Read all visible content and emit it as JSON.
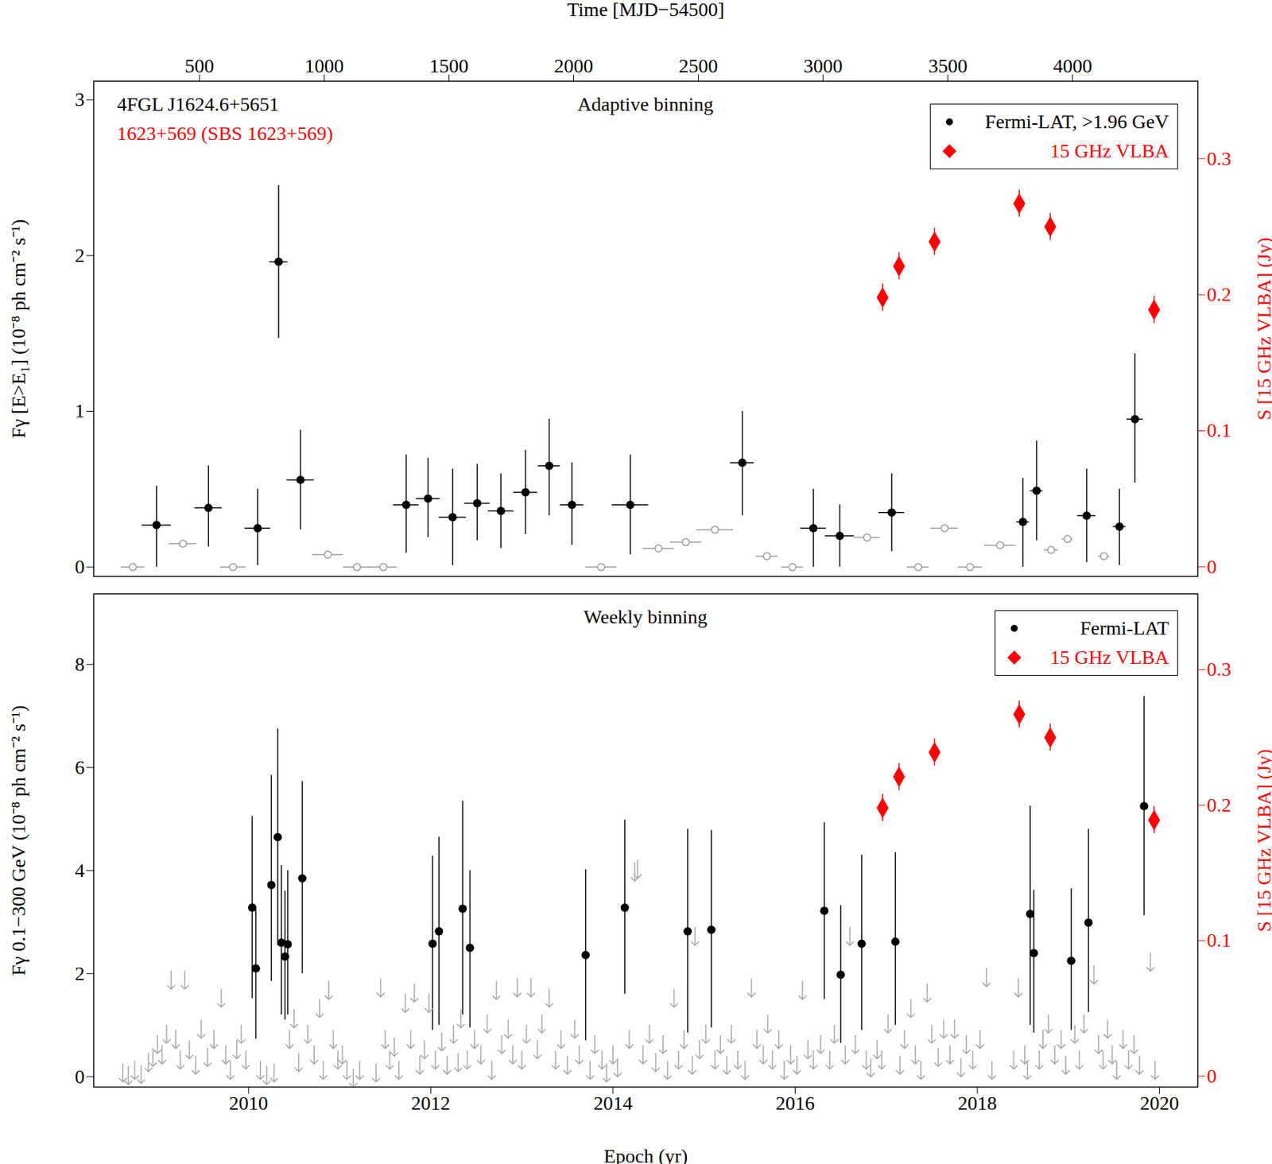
{
  "chart_data": [
    {
      "type": "scatter",
      "title": "Adaptive binning",
      "annotations": [
        {
          "text": "4FGL J1624.6+5651",
          "color": "#000000"
        },
        {
          "text": "1623+569 (SBS 1623+569)",
          "color": "#ff0000"
        }
      ],
      "ylabel": "Fγ [E>E₁] (10⁻⁸ ph cm⁻² s⁻¹)",
      "x2label": "Time [MJD−54500]",
      "y2label": "S [15 GHz VLBA] (Jy)",
      "xlim": [
        2008.3,
        2020.42
      ],
      "x2lim": [
        76,
        4502
      ],
      "x2ticks": [
        500,
        1000,
        1500,
        2000,
        2500,
        3000,
        3500,
        4000
      ],
      "ylim": [
        -0.06,
        3.12
      ],
      "yticks": [
        0,
        1,
        2,
        3
      ],
      "y2lim": [
        -0.007,
        0.357
      ],
      "y2ticks": [
        0,
        0.1,
        0.2,
        0.3
      ],
      "grid": false,
      "legend": "upper right",
      "series": [
        {
          "name": "Fermi-LAT, >1.96 GeV",
          "color": "#000000",
          "marker": "circle",
          "x": [
            2008.99,
            2009.56,
            2010.1,
            2010.33,
            2010.57,
            2011.73,
            2011.97,
            2012.24,
            2012.51,
            2012.77,
            2013.04,
            2013.3,
            2013.55,
            2014.19,
            2015.42,
            2016.2,
            2016.49,
            2017.06,
            2018.5,
            2018.65,
            2019.2,
            2019.56,
            2019.73
          ],
          "values": [
            0.27,
            0.38,
            0.25,
            1.96,
            0.56,
            0.4,
            0.44,
            0.32,
            0.41,
            0.36,
            0.48,
            0.65,
            0.4,
            0.4,
            0.67,
            0.25,
            0.2,
            0.35,
            0.29,
            0.49,
            0.33,
            0.26,
            0.95
          ],
          "y_lower": [
            0,
            0.13,
            0.01,
            1.47,
            0.24,
            0.09,
            0.19,
            0.01,
            0.17,
            0.12,
            0.21,
            0.33,
            0.14,
            0.08,
            0.33,
            0,
            0,
            0.1,
            0,
            0.17,
            0.03,
            0.01,
            0.54
          ],
          "y_upper": [
            0.52,
            0.65,
            0.5,
            2.45,
            0.88,
            0.72,
            0.7,
            0.63,
            0.66,
            0.6,
            0.75,
            0.95,
            0.67,
            0.72,
            1.0,
            0.5,
            0.4,
            0.6,
            0.57,
            0.81,
            0.63,
            0.5,
            1.37
          ],
          "x_err": [
            0.16,
            0.15,
            0.14,
            0.1,
            0.15,
            0.14,
            0.13,
            0.15,
            0.14,
            0.14,
            0.13,
            0.12,
            0.13,
            0.2,
            0.13,
            0.14,
            0.16,
            0.14,
            0.07,
            0.07,
            0.1,
            0.07,
            0.09
          ]
        },
        {
          "color": "#999999",
          "marker": "open_circle",
          "x": [
            2008.73,
            2009.28,
            2009.83,
            2010.87,
            2011.19,
            2011.48,
            2013.87,
            2014.5,
            2014.8,
            2015.12,
            2015.69,
            2015.97,
            2016.79,
            2017.35,
            2017.64,
            2017.92,
            2018.25,
            2018.81,
            2018.99,
            2019.39
          ],
          "values": [
            0,
            0.15,
            0,
            0.08,
            0,
            0,
            0,
            0.12,
            0.16,
            0.24,
            0.07,
            0,
            0.19,
            0,
            0.25,
            0,
            0.14,
            0.11,
            0.18,
            0.07
          ],
          "x_err": [
            0.13,
            0.15,
            0.14,
            0.17,
            0.15,
            0.15,
            0.17,
            0.17,
            0.17,
            0.2,
            0.12,
            0.12,
            0.14,
            0.12,
            0.15,
            0.13,
            0.17,
            0.08,
            0.06,
            0.06
          ]
        },
        {
          "name": "15 GHz VLBA",
          "color": "#ff0000",
          "marker": "diamond",
          "axis": "y2",
          "x": [
            2016.96,
            2017.14,
            2017.53,
            2018.46,
            2018.8,
            2019.94
          ],
          "values": [
            0.198,
            0.221,
            0.239,
            0.267,
            0.25,
            0.189
          ],
          "y_lower": [
            0.188,
            0.211,
            0.229,
            0.257,
            0.24,
            0.179
          ],
          "y_upper": [
            0.208,
            0.231,
            0.249,
            0.277,
            0.26,
            0.199
          ]
        }
      ]
    },
    {
      "type": "scatter",
      "title": "Weekly binning",
      "xlabel": "Epoch (yr)",
      "ylabel": "Fγ 0.1−300 GeV (10⁻⁸ ph cm⁻² s⁻¹)",
      "y2label": "S [15 GHz VLBA] (Jy)",
      "xlim": [
        2008.3,
        2020.42
      ],
      "xticks": [
        2010,
        2012,
        2014,
        2016,
        2018,
        2020
      ],
      "ylim": [
        -0.2,
        9.37
      ],
      "yticks": [
        0,
        2,
        4,
        6,
        8
      ],
      "y2lim": [
        -0.008,
        0.356
      ],
      "y2ticks": [
        0,
        0.1,
        0.2,
        0.3
      ],
      "grid": false,
      "legend": "upper right",
      "series": [
        {
          "name": "Fermi-LAT",
          "color": "#000000",
          "marker": "circle",
          "x": [
            2010.04,
            2010.08,
            2010.25,
            2010.32,
            2010.36,
            2010.4,
            2010.43,
            2010.59,
            2012.02,
            2012.09,
            2012.35,
            2012.43,
            2013.7,
            2014.13,
            2014.82,
            2015.08,
            2016.32,
            2016.5,
            2016.73,
            2017.1,
            2018.58,
            2018.62,
            2019.03,
            2019.22,
            2019.83
          ],
          "values": [
            3.28,
            2.1,
            3.72,
            4.65,
            2.6,
            2.33,
            2.57,
            3.85,
            2.58,
            2.82,
            3.26,
            2.5,
            2.36,
            3.28,
            2.82,
            2.85,
            3.22,
            1.98,
            2.58,
            2.62,
            3.16,
            2.4,
            2.25,
            2.99,
            5.25
          ],
          "y_lower": [
            1.52,
            0.73,
            1.85,
            2.55,
            1.2,
            1.1,
            1.2,
            2.0,
            0.9,
            1.0,
            1.2,
            0.95,
            0.7,
            1.6,
            0.85,
            0.95,
            1.5,
            0.65,
            0.9,
            1.0,
            1.0,
            0.85,
            0.9,
            1.25,
            3.13
          ],
          "y_upper": [
            5.05,
            3.3,
            5.85,
            6.75,
            4.1,
            3.6,
            4.0,
            5.73,
            4.28,
            4.65,
            5.35,
            4.0,
            4.02,
            4.98,
            4.8,
            4.78,
            4.93,
            3.32,
            4.3,
            4.35,
            5.25,
            3.62,
            3.65,
            4.8,
            7.38
          ]
        },
        {
          "color": "#aaaaaa",
          "marker": "arrow",
          "x": [
            2008.62,
            2008.68,
            2008.75,
            2008.82,
            2008.9,
            2008.95,
            2009.0,
            2009.05,
            2009.1,
            2009.15,
            2009.2,
            2009.25,
            2009.3,
            2009.35,
            2009.42,
            2009.48,
            2009.55,
            2009.62,
            2009.7,
            2009.75,
            2009.8,
            2009.87,
            2009.92,
            2009.97,
            2010.13,
            2010.2,
            2010.28,
            2010.45,
            2010.5,
            2010.55,
            2010.65,
            2010.72,
            2010.78,
            2010.82,
            2010.88,
            2010.93,
            2010.98,
            2011.03,
            2011.08,
            2011.15,
            2011.22,
            2011.4,
            2011.45,
            2011.5,
            2011.55,
            2011.6,
            2011.65,
            2011.72,
            2011.78,
            2011.82,
            2011.88,
            2011.93,
            2011.98,
            2012.05,
            2012.12,
            2012.18,
            2012.25,
            2012.3,
            2012.33,
            2012.4,
            2012.48,
            2012.55,
            2012.62,
            2012.67,
            2012.72,
            2012.78,
            2012.85,
            2012.9,
            2012.95,
            2013.0,
            2013.05,
            2013.1,
            2013.17,
            2013.22,
            2013.3,
            2013.37,
            2013.43,
            2013.5,
            2013.58,
            2013.63,
            2013.75,
            2013.8,
            2013.88,
            2013.93,
            2014.0,
            2014.05,
            2014.18,
            2014.24,
            2014.27,
            2014.33,
            2014.4,
            2014.47,
            2014.55,
            2014.6,
            2014.67,
            2014.72,
            2014.78,
            2014.87,
            2014.9,
            2014.95,
            2015.02,
            2015.12,
            2015.18,
            2015.25,
            2015.3,
            2015.37,
            2015.45,
            2015.52,
            2015.58,
            2015.65,
            2015.7,
            2015.75,
            2015.82,
            2015.88,
            2015.95,
            2016.02,
            2016.08,
            2016.14,
            2016.2,
            2016.28,
            2016.38,
            2016.43,
            2016.55,
            2016.6,
            2016.66,
            2016.78,
            2016.83,
            2016.9,
            2016.95,
            2017.02,
            2017.15,
            2017.2,
            2017.27,
            2017.32,
            2017.38,
            2017.45,
            2017.5,
            2017.57,
            2017.63,
            2017.7,
            2017.75,
            2017.82,
            2017.88,
            2017.95,
            2018.03,
            2018.1,
            2018.16,
            2018.4,
            2018.45,
            2018.52,
            2018.55,
            2018.68,
            2018.72,
            2018.78,
            2018.85,
            2018.92,
            2018.97,
            2019.07,
            2019.12,
            2019.17,
            2019.28,
            2019.33,
            2019.38,
            2019.43,
            2019.48,
            2019.53,
            2019.6,
            2019.66,
            2019.72,
            2019.78,
            2019.9,
            2019.95
          ],
          "values": [
            0.25,
            0.2,
            0.3,
            0.22,
            0.45,
            0.55,
            0.8,
            0.6,
            1.0,
            2.05,
            0.9,
            0.5,
            2.05,
            0.7,
            0.4,
            1.1,
            0.55,
            0.9,
            1.7,
            0.6,
            0.3,
            0.7,
            1.0,
            0.5,
            0.3,
            0.2,
            0.25,
            0.9,
            1.3,
            0.45,
            1.0,
            0.6,
            1.5,
            0.3,
            1.85,
            0.9,
            0.5,
            0.6,
            0.3,
            0.15,
            0.3,
            0.25,
            1.9,
            0.9,
            0.5,
            0.75,
            0.3,
            1.6,
            0.9,
            1.8,
            0.4,
            0.7,
            1.6,
            0.5,
            0.85,
            0.4,
            1.0,
            0.45,
            1.3,
            0.5,
            0.9,
            0.6,
            1.2,
            0.3,
            1.85,
            0.8,
            1.1,
            0.6,
            1.9,
            0.5,
            1.0,
            1.9,
            0.7,
            1.2,
            1.7,
            0.5,
            0.9,
            0.4,
            1.1,
            0.6,
            0.3,
            0.8,
            0.5,
            0.25,
            0.6,
            0.35,
            0.9,
            4.15,
            4.2,
            0.6,
            1.0,
            0.45,
            0.8,
            0.3,
            1.7,
            0.5,
            0.9,
            0.4,
            2.9,
            0.7,
            1.0,
            0.5,
            0.8,
            0.4,
            1.0,
            0.5,
            0.3,
            1.9,
            0.9,
            0.6,
            1.2,
            0.5,
            0.9,
            0.3,
            0.6,
            0.4,
            1.85,
            0.7,
            0.5,
            0.8,
            0.5,
            1.0,
            0.6,
            2.9,
            0.8,
            0.5,
            0.35,
            0.7,
            0.5,
            1.2,
            0.4,
            0.9,
            1.5,
            0.6,
            0.3,
            1.8,
            1.0,
            0.55,
            1.1,
            0.6,
            1.1,
            0.35,
            0.8,
            0.5,
            0.9,
            2.1,
            0.3,
            0.5,
            1.9,
            0.6,
            0.3,
            0.5,
            0.9,
            1.2,
            0.6,
            0.9,
            0.4,
            1.0,
            0.5,
            1.2,
            2.15,
            0.8,
            0.5,
            1.1,
            0.6,
            0.3,
            0.9,
            0.5,
            0.8,
            0.4,
            2.4,
            0.3
          ]
        },
        {
          "name": "15 GHz VLBA",
          "color": "#ff0000",
          "marker": "diamond",
          "axis": "y2",
          "x": [
            2016.96,
            2017.14,
            2017.53,
            2018.46,
            2018.8,
            2019.94
          ],
          "values": [
            0.198,
            0.221,
            0.239,
            0.267,
            0.25,
            0.189
          ],
          "y_lower": [
            0.188,
            0.211,
            0.229,
            0.257,
            0.24,
            0.179
          ],
          "y_upper": [
            0.208,
            0.231,
            0.249,
            0.277,
            0.26,
            0.199
          ]
        }
      ]
    }
  ]
}
